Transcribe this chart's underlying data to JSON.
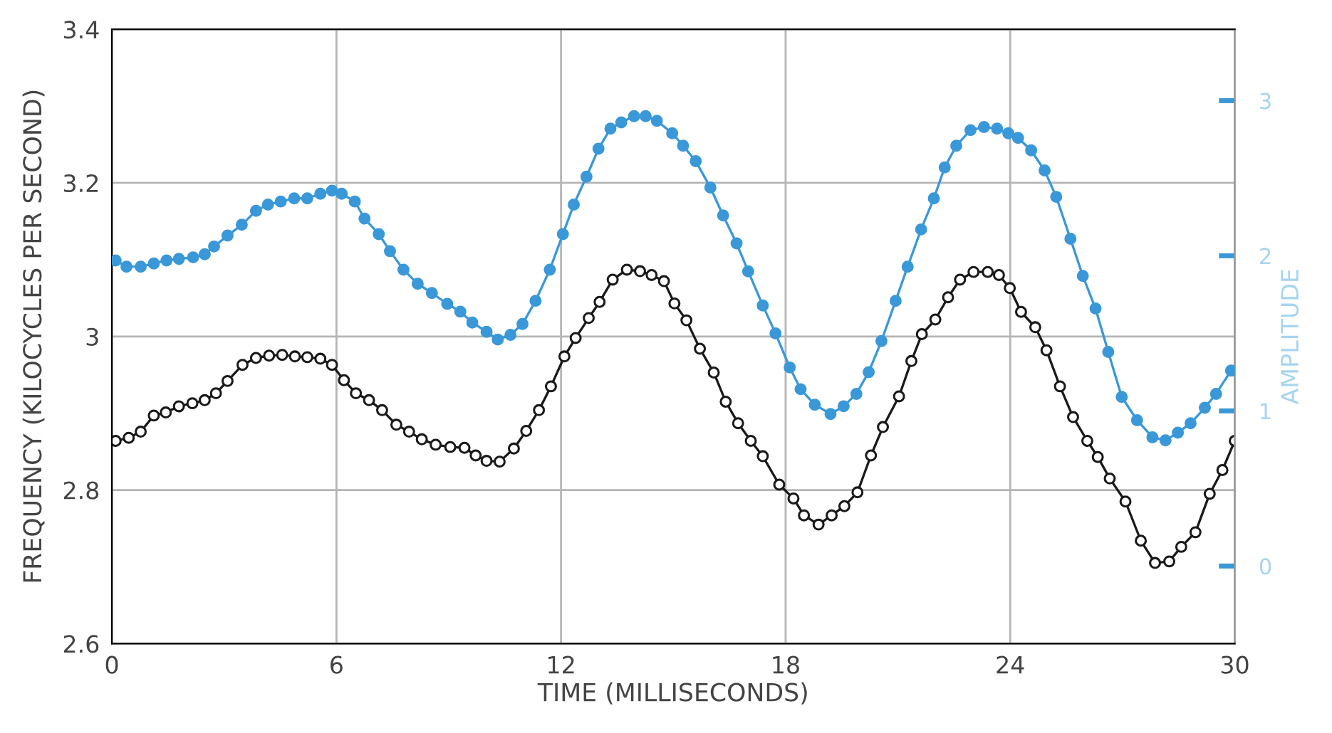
{
  "chart_data": {
    "type": "line",
    "xlabel": "TIME (MILLISECONDS)",
    "ylabel": "FREQUENCY (KILOCYCLES PER SECOND)",
    "y2label": "AMPLITUDE",
    "xlim": [
      0,
      30
    ],
    "xticks": [
      0,
      6,
      12,
      18,
      24,
      30
    ],
    "ylim": [
      2.6,
      3.4
    ],
    "yticks": [
      2.6,
      2.8,
      3,
      3.2,
      3.4
    ],
    "y2lim": [
      -0.5,
      3.46
    ],
    "y2ticks": [
      0,
      1,
      2,
      3
    ],
    "grid": true,
    "marker": "circle",
    "line_style": "solid",
    "series": [
      {
        "color": "#1a1a1a",
        "x": [
          0.1,
          0.45,
          0.77,
          1.12,
          1.44,
          1.79,
          2.15,
          2.48,
          2.78,
          3.09,
          3.49,
          3.85,
          4.2,
          4.55,
          4.89,
          5.22,
          5.57,
          5.88,
          6.2,
          6.52,
          6.87,
          7.22,
          7.6,
          7.94,
          8.28,
          8.65,
          9.04,
          9.42,
          9.72,
          10.01,
          10.36,
          10.74,
          11.07,
          11.41,
          11.73,
          12.09,
          12.39,
          12.74,
          13.03,
          13.38,
          13.76,
          14.11,
          14.42,
          14.75,
          15.03,
          15.35,
          15.71,
          16.08,
          16.4,
          16.73,
          17.07,
          17.39,
          17.83,
          18.21,
          18.49,
          18.88,
          19.23,
          19.57,
          19.92,
          20.28,
          20.6,
          21.03,
          21.36,
          21.64,
          22.0,
          22.34,
          22.66,
          23.02,
          23.4,
          23.7,
          23.99,
          24.29,
          24.67,
          24.97,
          25.33,
          25.68,
          26.06,
          26.34,
          26.66,
          27.08,
          27.49,
          27.87,
          28.25,
          28.57,
          28.95,
          29.33,
          29.67,
          30.0
        ],
        "values": [
          2.864,
          2.868,
          2.876,
          2.897,
          2.901,
          2.909,
          2.913,
          2.917,
          2.926,
          2.942,
          2.963,
          2.972,
          2.975,
          2.976,
          2.974,
          2.973,
          2.971,
          2.963,
          2.943,
          2.926,
          2.917,
          2.904,
          2.885,
          2.876,
          2.866,
          2.859,
          2.856,
          2.855,
          2.845,
          2.838,
          2.837,
          2.854,
          2.877,
          2.904,
          2.935,
          2.974,
          2.998,
          3.024,
          3.045,
          3.074,
          3.087,
          3.085,
          3.08,
          3.072,
          3.043,
          3.021,
          2.984,
          2.953,
          2.915,
          2.887,
          2.864,
          2.844,
          2.807,
          2.789,
          2.767,
          2.755,
          2.767,
          2.779,
          2.797,
          2.845,
          2.882,
          2.922,
          2.968,
          3.003,
          3.022,
          3.051,
          3.074,
          3.084,
          3.084,
          3.08,
          3.063,
          3.032,
          3.012,
          2.982,
          2.935,
          2.895,
          2.864,
          2.843,
          2.815,
          2.785,
          2.734,
          2.705,
          2.707,
          2.726,
          2.745,
          2.795,
          2.826,
          2.864
        ]
      },
      {
        "color": "#3a98d8",
        "axis": "y2",
        "x": [
          0.1,
          0.39,
          0.77,
          1.12,
          1.46,
          1.79,
          2.17,
          2.48,
          2.73,
          3.09,
          3.47,
          3.85,
          4.17,
          4.51,
          4.87,
          5.22,
          5.57,
          5.88,
          6.14,
          6.49,
          6.75,
          7.13,
          7.43,
          7.79,
          8.17,
          8.55,
          8.96,
          9.31,
          9.63,
          10.01,
          10.31,
          10.65,
          10.97,
          11.32,
          11.7,
          12.05,
          12.34,
          12.68,
          13.0,
          13.32,
          13.61,
          13.95,
          14.26,
          14.56,
          14.97,
          15.26,
          15.6,
          15.99,
          16.33,
          16.69,
          17.0,
          17.39,
          17.73,
          18.11,
          18.4,
          18.78,
          19.2,
          19.55,
          19.89,
          20.22,
          20.56,
          20.94,
          21.26,
          21.62,
          21.96,
          22.25,
          22.56,
          22.94,
          23.3,
          23.65,
          23.95,
          24.21,
          24.56,
          24.92,
          25.23,
          25.61,
          25.94,
          26.28,
          26.62,
          26.98,
          27.39,
          27.8,
          28.15,
          28.48,
          28.82,
          29.2,
          29.5,
          29.9
        ],
        "values": [
          1.97,
          1.93,
          1.93,
          1.95,
          1.97,
          1.98,
          1.99,
          2.01,
          2.06,
          2.13,
          2.2,
          2.29,
          2.33,
          2.35,
          2.37,
          2.37,
          2.4,
          2.42,
          2.4,
          2.35,
          2.24,
          2.14,
          2.03,
          1.91,
          1.82,
          1.76,
          1.69,
          1.64,
          1.57,
          1.51,
          1.46,
          1.49,
          1.56,
          1.71,
          1.91,
          2.14,
          2.33,
          2.51,
          2.69,
          2.82,
          2.86,
          2.9,
          2.9,
          2.87,
          2.79,
          2.71,
          2.61,
          2.44,
          2.26,
          2.08,
          1.9,
          1.68,
          1.5,
          1.28,
          1.14,
          1.04,
          0.98,
          1.03,
          1.11,
          1.25,
          1.45,
          1.71,
          1.93,
          2.17,
          2.37,
          2.57,
          2.71,
          2.81,
          2.83,
          2.82,
          2.79,
          2.76,
          2.68,
          2.55,
          2.38,
          2.11,
          1.87,
          1.66,
          1.38,
          1.09,
          0.94,
          0.83,
          0.81,
          0.86,
          0.92,
          1.02,
          1.11,
          1.26
        ]
      }
    ]
  }
}
